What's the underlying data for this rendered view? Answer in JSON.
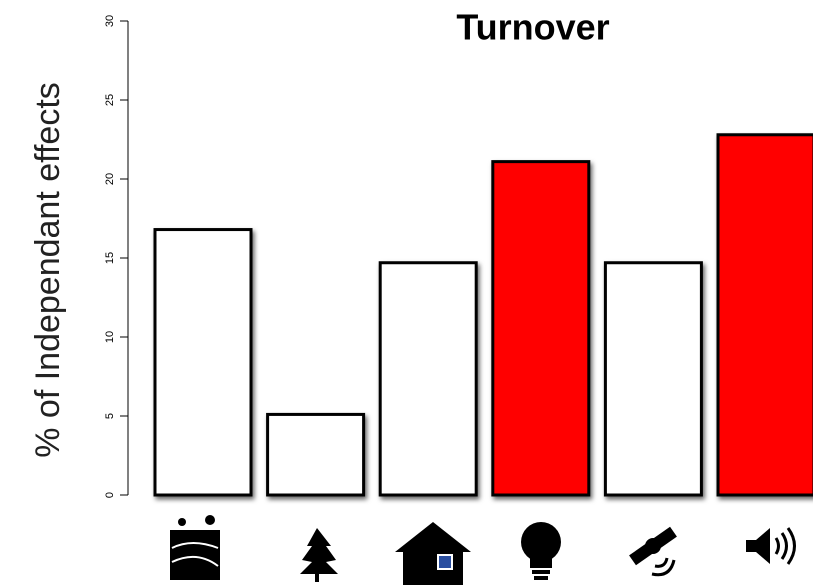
{
  "chart_data": {
    "type": "bar",
    "title": "Turnover",
    "y_label": "% of Independant effects",
    "categories": [
      null,
      null,
      null,
      null,
      null,
      null
    ],
    "values": [
      16.8,
      5.1,
      14.7,
      21.1,
      14.7,
      22.8
    ],
    "colors": [
      "#ffffff",
      "#ffffff",
      "#ffffff",
      "#ff0000",
      "#ffffff",
      "#ff0000"
    ],
    "ylim": [
      0,
      30
    ],
    "yticks": [
      0,
      5,
      10,
      15,
      20,
      25,
      30
    ],
    "grid": false
  }
}
